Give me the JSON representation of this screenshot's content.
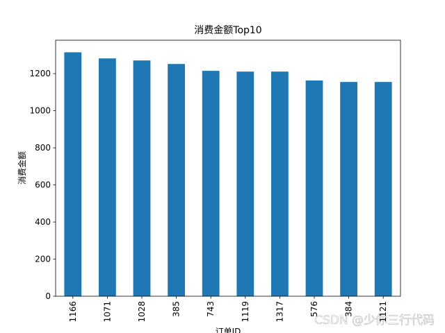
{
  "chart_data": {
    "type": "bar",
    "title": "消费金额Top10",
    "x_label": "订单ID",
    "y_label": "消费金额",
    "categories": [
      "1166",
      "1071",
      "1028",
      "385",
      "743",
      "1119",
      "1317",
      "576",
      "384",
      "1121"
    ],
    "values": [
      1315,
      1282,
      1271,
      1252,
      1215,
      1211,
      1211,
      1163,
      1155,
      1155
    ],
    "color": "#1f77b4",
    "ylim": [
      0,
      1380
    ],
    "yticks": [
      0,
      200,
      400,
      600,
      800,
      1000,
      1200
    ],
    "grid": false
  },
  "watermark": "CSDN @少你三行代码"
}
